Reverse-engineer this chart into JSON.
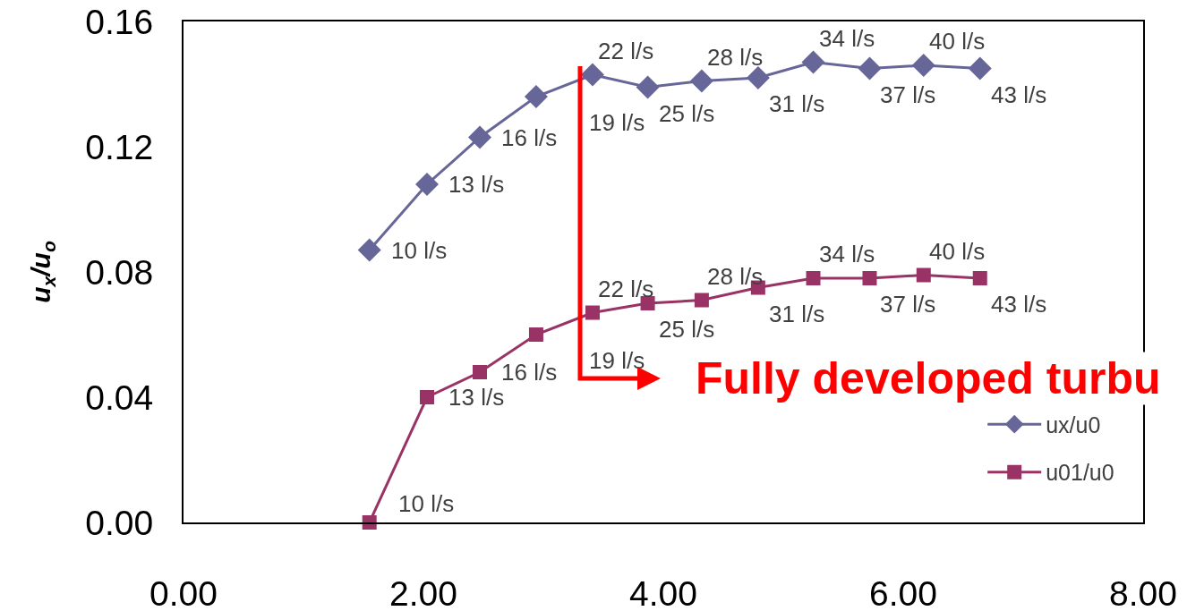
{
  "chart_data": {
    "type": "line",
    "ylabel": "u$_{x}$/u$_{o}$",
    "xlim": [
      0,
      8
    ],
    "xticks": [
      {
        "value": 0,
        "label": "0.00"
      },
      {
        "value": 2,
        "label": "2.00"
      },
      {
        "value": 4,
        "label": "4.00"
      },
      {
        "value": 6,
        "label": "6.00"
      },
      {
        "value": 8,
        "label": "8.00"
      }
    ],
    "ylim": [
      0,
      0.16
    ],
    "yticks": [
      {
        "value": 0,
        "label": "0.00"
      },
      {
        "value": 0.04,
        "label": "0.04"
      },
      {
        "value": 0.08,
        "label": "0.08"
      },
      {
        "value": 0.12,
        "label": "0.12"
      },
      {
        "value": 0.16,
        "label": "0.16"
      }
    ],
    "legend": "bottom right",
    "x": [
      1.55,
      2.03,
      2.47,
      2.94,
      3.41,
      3.87,
      4.32,
      4.79,
      5.25,
      5.72,
      6.17,
      6.64
    ],
    "series": [
      {
        "name": "ux/u0",
        "color": "#666699",
        "marker": "diamond",
        "values": [
          0.087,
          0.108,
          0.123,
          0.136,
          0.143,
          0.139,
          0.141,
          0.142,
          0.147,
          0.145,
          0.146,
          0.145
        ]
      },
      {
        "name": "u01/u0",
        "color": "#993366",
        "marker": "square",
        "values": [
          0.0,
          0.04,
          0.048,
          0.06,
          0.067,
          0.07,
          0.071,
          0.075,
          0.078,
          0.078,
          0.079,
          0.078
        ]
      }
    ],
    "annotations": [
      {
        "text": "10 l/s",
        "x": 1.55,
        "y": 0.087
      },
      {
        "text": "13 l/s",
        "x": 2.03,
        "y": 0.108
      },
      {
        "text": "16 l/s",
        "x": 2.47,
        "y": 0.123
      },
      {
        "text": "19 l/s",
        "x": 2.94,
        "y": 0.136
      },
      {
        "text": "22 l/s",
        "x": 3.41,
        "y": 0.143
      },
      {
        "text": "25 l/s",
        "x": 3.87,
        "y": 0.139
      },
      {
        "text": "28 l/s",
        "x": 4.32,
        "y": 0.141
      },
      {
        "text": "31 l/s",
        "x": 4.79,
        "y": 0.142
      },
      {
        "text": "34 l/s",
        "x": 5.25,
        "y": 0.147
      },
      {
        "text": "37 l/s",
        "x": 5.72,
        "y": 0.145
      },
      {
        "text": "40 l/s",
        "x": 6.17,
        "y": 0.146
      },
      {
        "text": "43 l/s",
        "x": 6.64,
        "y": 0.145
      },
      {
        "text": "10 l/s",
        "x": 1.55,
        "y": 0.0
      },
      {
        "text": "13 l/s",
        "x": 2.03,
        "y": 0.04
      },
      {
        "text": "16 l/s",
        "x": 2.47,
        "y": 0.048
      },
      {
        "text": "19 l/s",
        "x": 2.94,
        "y": 0.06
      },
      {
        "text": "22 l/s",
        "x": 3.41,
        "y": 0.067
      },
      {
        "text": "25 l/s",
        "x": 3.87,
        "y": 0.07
      },
      {
        "text": "28 l/s",
        "x": 4.32,
        "y": 0.071
      },
      {
        "text": "31 l/s",
        "x": 4.79,
        "y": 0.075
      },
      {
        "text": "34 l/s",
        "x": 5.25,
        "y": 0.078
      },
      {
        "text": "37 l/s",
        "x": 5.72,
        "y": 0.078
      },
      {
        "text": "40 l/s",
        "x": 6.17,
        "y": 0.079
      },
      {
        "text": "43 l/s",
        "x": 6.64,
        "y": 0.078
      },
      "Fully developed turbu"
    ]
  }
}
